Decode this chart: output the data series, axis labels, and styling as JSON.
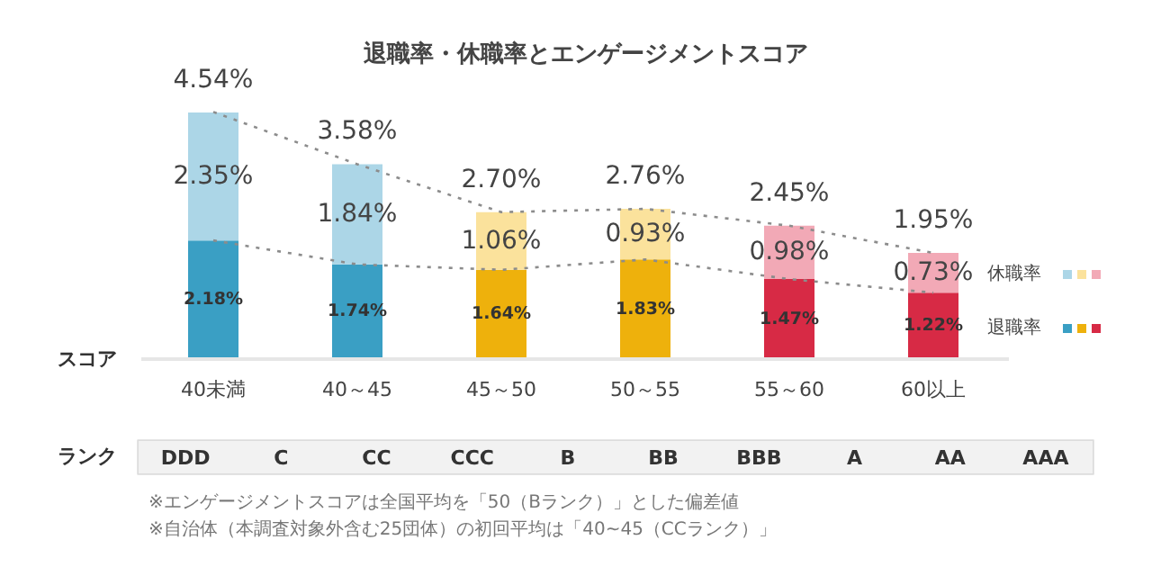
{
  "chart_data": {
    "type": "bar",
    "stacked": true,
    "title": "退職率・休職率とエンゲージメントスコア",
    "xlabel": "スコア",
    "categories": [
      "40未満",
      "40～45",
      "45～50",
      "50～55",
      "55～60",
      "60以上"
    ],
    "series": [
      {
        "name": "退職率",
        "colors": [
          "#3a9fc4",
          "#3a9fc4",
          "#eeb10c",
          "#eeb10c",
          "#d72a45",
          "#d72a45"
        ],
        "values": [
          2.18,
          1.74,
          1.64,
          1.83,
          1.47,
          1.22
        ],
        "value_labels": [
          "2.18%",
          "1.74%",
          "1.64%",
          "1.83%",
          "1.47%",
          "1.22%"
        ]
      },
      {
        "name": "休職率",
        "colors": [
          "#acd6e7",
          "#acd6e7",
          "#fbe29c",
          "#fbe29c",
          "#f2a9b6",
          "#f2a9b6"
        ],
        "values": [
          2.35,
          1.84,
          1.06,
          0.93,
          0.98,
          0.73
        ],
        "value_labels": [
          "2.35%",
          "1.84%",
          "1.06%",
          "0.93%",
          "0.98%",
          "0.73%"
        ]
      },
      {
        "type": "line",
        "color": "#8c8c8c",
        "line_style": "dotted",
        "values": [
          4.54,
          3.58,
          2.7,
          2.76,
          2.45,
          1.95
        ]
      },
      {
        "type": "line",
        "color": "#8c8c8c",
        "line_style": "dotted",
        "values": [
          2.18,
          1.74,
          1.64,
          1.83,
          1.47,
          1.22
        ]
      }
    ],
    "totals": [
      "4.54%",
      "3.58%",
      "2.70%",
      "2.76%",
      "2.45%",
      "1.95%"
    ],
    "legend": "right",
    "annotations": [
      "ランク",
      "DDD",
      "C",
      "CC",
      "CCC",
      "B",
      "BB",
      "BBB",
      "A",
      "AA",
      "AAA",
      "※エンゲージメントスコアは全国平均を「50（Bランク）」とした偏差値",
      "※自治体（本調査対象外含む25団体）の初回平均は「40~45（CCランク）」"
    ]
  }
}
